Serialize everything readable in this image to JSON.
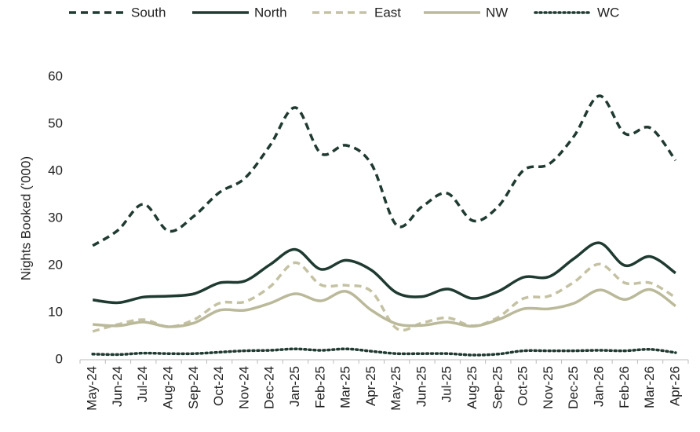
{
  "chart_data": {
    "type": "line",
    "y_label": "Nights Booked ('000)",
    "categories": [
      "May-24",
      "Jun-24",
      "Jul-24",
      "Aug-24",
      "Sep-24",
      "Oct-24",
      "Nov-24",
      "Dec-24",
      "Jan-25",
      "Feb-25",
      "Mar-25",
      "Apr-25",
      "May-25",
      "Jun-25",
      "Jul-25",
      "Aug-25",
      "Sep-25",
      "Oct-25",
      "Nov-25",
      "Dec-25",
      "Jan-26",
      "Feb-26",
      "Mar-26",
      "Apr-26"
    ],
    "series": [
      {
        "name": "South",
        "color": "#1f3a30",
        "dash": "dashed",
        "values": [
          24.2,
          27.5,
          33,
          27.3,
          30.5,
          35.5,
          38.5,
          45.5,
          53.5,
          43.8,
          45.5,
          41.5,
          28.5,
          32.5,
          35.3,
          29.5,
          32.5,
          40.2,
          41.5,
          47.5,
          56,
          48,
          49.2,
          42.3
        ]
      },
      {
        "name": "North",
        "color": "#1f3a30",
        "dash": "solid",
        "values": [
          12.7,
          12.1,
          13.3,
          13.5,
          14.0,
          16.3,
          16.7,
          20.2,
          23.4,
          19.2,
          21.1,
          19.0,
          14.2,
          13.4,
          15.0,
          13.0,
          14.5,
          17.5,
          17.6,
          21.5,
          24.8,
          20.0,
          21.9,
          18.4
        ]
      },
      {
        "name": "East",
        "color": "#c4c2a3",
        "dash": "dashed",
        "values": [
          6.0,
          7.5,
          8.5,
          7.0,
          8.5,
          12.0,
          12.3,
          15.5,
          20.6,
          15.9,
          15.8,
          14.5,
          6.6,
          7.8,
          8.9,
          7.2,
          9.0,
          13.0,
          13.5,
          16.5,
          20.3,
          16.3,
          16.3,
          13.2
        ]
      },
      {
        "name": "NW",
        "color": "#bab99a",
        "dash": "solid",
        "values": [
          7.5,
          7.2,
          8.0,
          7.0,
          7.8,
          10.5,
          10.5,
          12.0,
          14.0,
          12.5,
          14.5,
          10.5,
          7.6,
          7.3,
          8.0,
          7.1,
          8.5,
          10.8,
          10.8,
          12.0,
          14.8,
          12.8,
          14.9,
          11.4
        ]
      },
      {
        "name": "WC",
        "color": "#1f3a30",
        "dash": "dotted",
        "values": [
          1.2,
          1.1,
          1.4,
          1.3,
          1.3,
          1.6,
          1.9,
          2.0,
          2.3,
          2.0,
          2.3,
          1.8,
          1.3,
          1.3,
          1.3,
          1.0,
          1.2,
          1.9,
          1.9,
          1.9,
          2.0,
          1.9,
          2.2,
          1.5
        ]
      }
    ],
    "ylim": [
      0,
      60
    ],
    "yticks": [
      0,
      10,
      20,
      30,
      40,
      50,
      60
    ],
    "grid": false,
    "legend": "top"
  }
}
